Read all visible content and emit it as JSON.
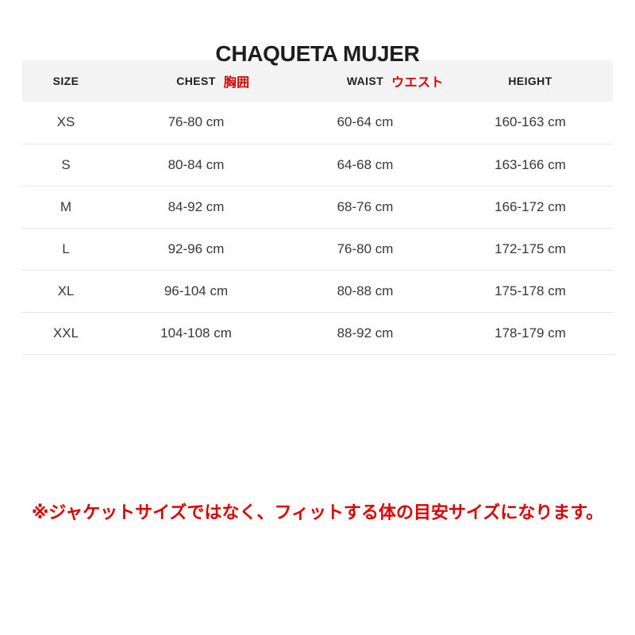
{
  "page_title": "CHAQUETA MUJER",
  "footnote": "※ジャケットサイズではなく、フィットする体の目安サイズになります。",
  "colors": {
    "accent_red": "#dd0000",
    "header_bg": "#f3f3f3",
    "heading_text": "#1e1e1e",
    "body_text": "#383838",
    "row_border": "#e7e7e7"
  },
  "table": {
    "headers": [
      {
        "label": "SIZE",
        "annotation": ""
      },
      {
        "label": "CHEST",
        "annotation": "胸囲"
      },
      {
        "label": "WAIST",
        "annotation": "ウエスト"
      },
      {
        "label": "HEIGHT",
        "annotation": ""
      }
    ],
    "rows": [
      [
        "XS",
        "76-80 cm",
        "60-64 cm",
        "160-163 cm"
      ],
      [
        "S",
        "80-84 cm",
        "64-68 cm",
        "163-166 cm"
      ],
      [
        "M",
        "84-92 cm",
        "68-76 cm",
        "166-172 cm"
      ],
      [
        "L",
        "92-96 cm",
        "76-80 cm",
        "172-175 cm"
      ],
      [
        "XL",
        "96-104 cm",
        "80-88 cm",
        "175-178 cm"
      ],
      [
        "XXL",
        "104-108 cm",
        "88-92 cm",
        "178-179 cm"
      ]
    ]
  },
  "chart_data": {
    "type": "table",
    "title": "CHAQUETA MUJER",
    "columns": [
      "SIZE",
      "CHEST 胸囲",
      "WAIST ウエスト",
      "HEIGHT"
    ],
    "rows": [
      [
        "XS",
        "76-80 cm",
        "60-64 cm",
        "160-163 cm"
      ],
      [
        "S",
        "80-84 cm",
        "64-68 cm",
        "163-166 cm"
      ],
      [
        "M",
        "84-92 cm",
        "68-76 cm",
        "166-172 cm"
      ],
      [
        "L",
        "92-96 cm",
        "76-80 cm",
        "172-175 cm"
      ],
      [
        "XL",
        "96-104 cm",
        "80-88 cm",
        "175-178 cm"
      ],
      [
        "XXL",
        "104-108 cm",
        "88-92 cm",
        "178-179 cm"
      ]
    ],
    "footnote": "※ジャケットサイズではなく、フィットする体の目安サイズになります。"
  }
}
